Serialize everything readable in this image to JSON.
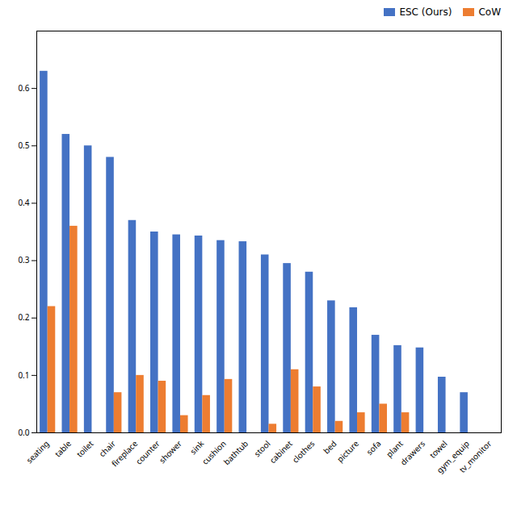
{
  "chart_data": {
    "type": "bar",
    "categories": [
      "seating",
      "table",
      "toilet",
      "chair",
      "fireplace",
      "counter",
      "shower",
      "sink",
      "cushion",
      "bathtub",
      "stool",
      "cabinet",
      "clothes",
      "bed",
      "picture",
      "sofa",
      "plant",
      "drawers",
      "towel",
      "gym_equip",
      "tv_monitor"
    ],
    "series": [
      {
        "name": "ESC (Ours)",
        "color": "#4472c4",
        "values": [
          0.63,
          0.52,
          0.5,
          0.48,
          0.37,
          0.35,
          0.345,
          0.343,
          0.335,
          0.333,
          0.31,
          0.295,
          0.28,
          0.23,
          0.218,
          0.17,
          0.152,
          0.148,
          0.097,
          0.07,
          0.0
        ]
      },
      {
        "name": "CoW",
        "color": "#ed7d31",
        "values": [
          0.22,
          0.36,
          0.0,
          0.07,
          0.1,
          0.09,
          0.03,
          0.065,
          0.093,
          0.0,
          0.015,
          0.11,
          0.08,
          0.02,
          0.035,
          0.05,
          0.035,
          0.0,
          0.0,
          0.0,
          0.0
        ]
      }
    ],
    "ylim": [
      0,
      0.7
    ],
    "yticks": [
      {
        "value": 0,
        "label": "0.0"
      },
      0.1,
      0.2,
      0.3,
      0.4,
      0.5,
      0.6
    ],
    "legend": "upper right"
  }
}
